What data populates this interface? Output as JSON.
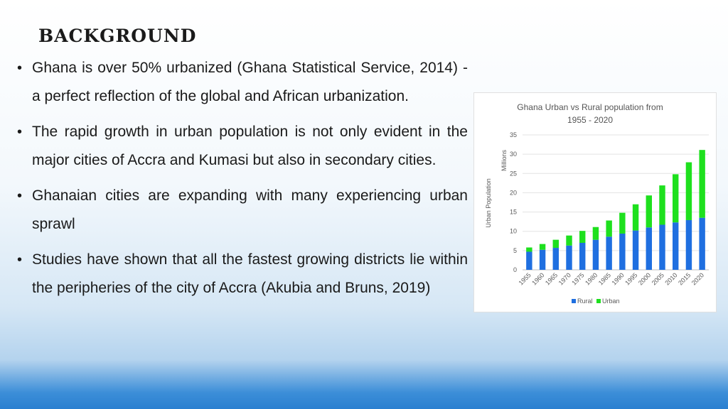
{
  "slide": {
    "title": "Background",
    "bullets": [
      "Ghana is over 50% urbanized (Ghana Statistical Service, 2014) - a perfect reflection of the global and African urbanization.",
      "The rapid growth in urban population is not only evident in the major cities of Accra and Kumasi but also in secondary cities.",
      "Ghanaian cities are expanding with many experiencing urban sprawl",
      "Studies have shown that all the fastest growing districts lie within the peripheries of the city of Accra (Akubia and Bruns, 2019)"
    ]
  },
  "chart_data": {
    "type": "bar",
    "stacked": true,
    "title_line1": "Ghana Urban vs Rural population from",
    "title_line2": "1955 - 2020",
    "ylabel": "Urban Population",
    "yunit": "Millions",
    "ylim": [
      0,
      35
    ],
    "yticks": [
      0,
      5,
      10,
      15,
      20,
      25,
      30,
      35
    ],
    "grid": true,
    "legend_position": "bottom",
    "categories": [
      "1955",
      "1960",
      "1965",
      "1970",
      "1975",
      "1980",
      "1985",
      "1990",
      "1995",
      "2000",
      "2005",
      "2010",
      "2015",
      "2020"
    ],
    "series": [
      {
        "name": "Rural",
        "color": "#1f6fe0",
        "values": [
          4.7,
          5.2,
          5.7,
          6.3,
          7.0,
          7.8,
          8.6,
          9.4,
          10.2,
          11.0,
          11.7,
          12.3,
          12.9,
          13.5
        ]
      },
      {
        "name": "Urban",
        "color": "#1ee01e",
        "values": [
          1.1,
          1.5,
          2.1,
          2.6,
          3.1,
          3.3,
          4.2,
          5.4,
          6.8,
          8.3,
          10.2,
          12.5,
          15.0,
          17.6
        ]
      }
    ]
  }
}
